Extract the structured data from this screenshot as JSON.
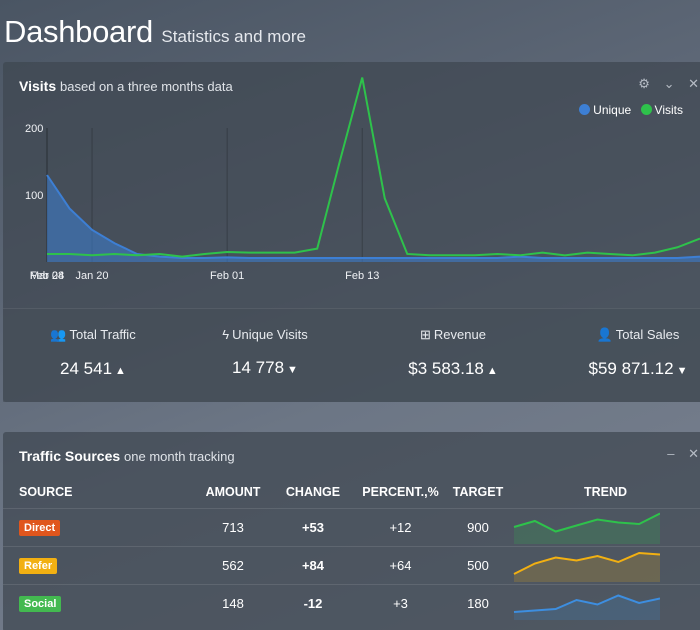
{
  "header": {
    "title": "Dashboard",
    "subtitle": "Statistics and more"
  },
  "visits_panel": {
    "title": "Visits",
    "subtitle": "based on a three months data",
    "tools": {
      "settings": "⚙",
      "collapse": "⌄",
      "close": "✕"
    },
    "legend": [
      {
        "label": "Unique",
        "color": "#3d7fd4"
      },
      {
        "label": "Visits",
        "color": "#2ec24b"
      }
    ],
    "stats": [
      {
        "icon": "users-icon",
        "glyph": "👥",
        "label": "Total Traffic",
        "value": "24 541",
        "trend": "▲"
      },
      {
        "icon": "bolt-icon",
        "glyph": "ϟ",
        "label": "Unique Visits",
        "value": "14 778",
        "trend": "▼"
      },
      {
        "icon": "plus-square-icon",
        "glyph": "⊞",
        "label": "Revenue",
        "value": "$3 583.18",
        "trend": "▲"
      },
      {
        "icon": "user-icon",
        "glyph": "👤",
        "label": "Total Sales",
        "value": "$59 871.12",
        "trend": "▼"
      }
    ]
  },
  "chart_data": {
    "type": "area",
    "title": "",
    "xlabel": "",
    "ylabel": "",
    "yticks": [
      "100",
      "200"
    ],
    "ylim": [
      0,
      260
    ],
    "xticks": [
      "Jan 20",
      "Feb 01",
      "Feb 13",
      "Feb 24",
      "Mar 08"
    ],
    "grid": true,
    "legend_position": "top-right",
    "x": [
      "Jan 16",
      "Jan 18",
      "Jan 20",
      "Jan 22",
      "Jan 24",
      "Jan 26",
      "Jan 28",
      "Jan 30",
      "Feb 01",
      "Feb 03",
      "Feb 05",
      "Feb 07",
      "Feb 09",
      "Feb 11",
      "Feb 13",
      "Feb 15",
      "Feb 17",
      "Feb 19",
      "Feb 21",
      "Feb 23",
      "Feb 25",
      "Feb 27",
      "Mar 01",
      "Mar 03",
      "Mar 05",
      "Mar 07",
      "Mar 09",
      "Mar 11",
      "Mar 13",
      "Mar 15"
    ],
    "series": [
      {
        "name": "Unique",
        "color": "#3d7fd4",
        "values": [
          130,
          80,
          48,
          28,
          12,
          8,
          6,
          6,
          7,
          6,
          6,
          6,
          6,
          6,
          6,
          6,
          6,
          6,
          6,
          6,
          6,
          8,
          6,
          6,
          6,
          6,
          6,
          6,
          6,
          8
        ]
      },
      {
        "name": "Visits",
        "color": "#2ec24b",
        "values": [
          12,
          12,
          10,
          12,
          10,
          12,
          8,
          12,
          15,
          14,
          14,
          14,
          20,
          150,
          280,
          95,
          12,
          10,
          10,
          10,
          12,
          10,
          14,
          10,
          14,
          12,
          10,
          14,
          22,
          35
        ]
      }
    ]
  },
  "traffic_panel": {
    "title": "Traffic Sources",
    "subtitle": "one month tracking",
    "tools": {
      "minimize": "–",
      "close": "✕"
    },
    "columns": [
      "SOURCE",
      "AMOUNT",
      "CHANGE",
      "PERCENT.,%",
      "TARGET",
      "TREND"
    ],
    "rows": [
      {
        "source": "Direct",
        "color": "#e0561d",
        "amount": "713",
        "change": "+53",
        "percent": "+12",
        "target": "900",
        "trend_color": "#2ec24b",
        "trend": [
          20,
          28,
          14,
          22,
          30,
          26,
          24,
          38
        ]
      },
      {
        "source": "Refer",
        "color": "#f2b012",
        "amount": "562",
        "change": "+84",
        "percent": "+64",
        "target": "500",
        "trend_color": "#f2b012",
        "trend": [
          8,
          22,
          30,
          26,
          32,
          24,
          36,
          34
        ]
      },
      {
        "source": "Social",
        "color": "#43b950",
        "amount": "148",
        "change": "-12",
        "percent": "+3",
        "target": "180",
        "trend_color": "#3d8ee0",
        "trend": [
          8,
          10,
          12,
          24,
          18,
          30,
          20,
          26
        ]
      }
    ]
  }
}
